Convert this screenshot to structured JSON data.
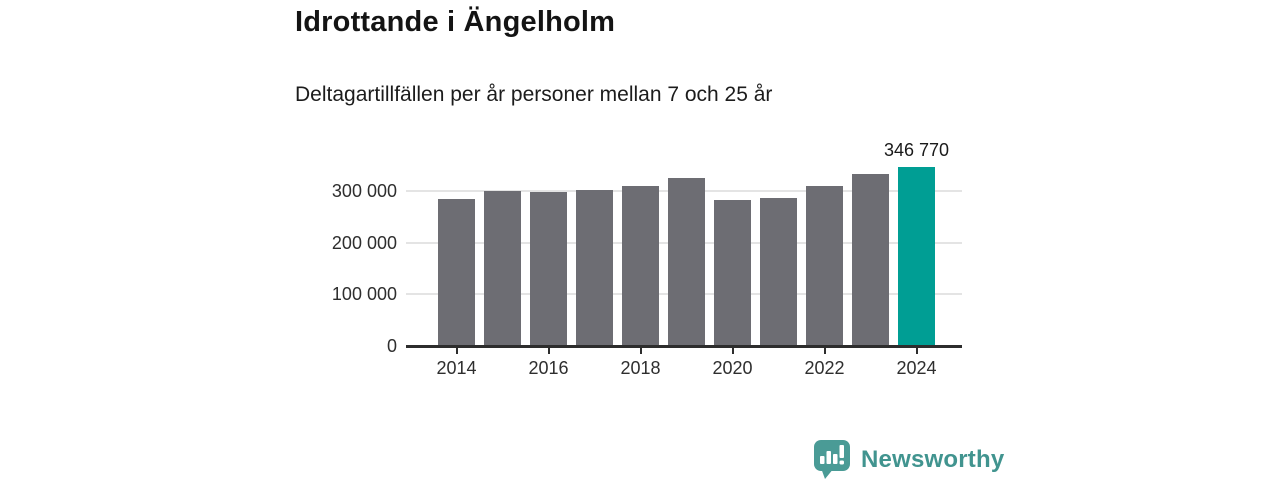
{
  "chart_data": {
    "type": "bar",
    "title": "Idrottande i Ängelholm",
    "subtitle": "Deltagartillfällen per år personer mellan 7 och 25 år",
    "categories": [
      "2014",
      "2015",
      "2016",
      "2017",
      "2018",
      "2019",
      "2020",
      "2021",
      "2022",
      "2023",
      "2024"
    ],
    "values": [
      284000,
      299000,
      297000,
      302000,
      309000,
      325000,
      282000,
      286000,
      309000,
      332000,
      346770
    ],
    "highlight_index": 10,
    "highlight_value_label": "346 770",
    "bar_color": "#6d6d73",
    "highlight_color": "#009e94",
    "x_tick_indices": [
      0,
      2,
      4,
      6,
      8,
      10
    ],
    "x_tick_labels": [
      "2014",
      "2016",
      "2018",
      "2020",
      "2022",
      "2024"
    ],
    "y_ticks": [
      {
        "value": 0,
        "label": "0"
      },
      {
        "value": 100000,
        "label": "100 000"
      },
      {
        "value": 200000,
        "label": "200 000"
      },
      {
        "value": 300000,
        "label": "300 000"
      }
    ],
    "ylim": [
      0,
      360000
    ],
    "grid": "horizontal",
    "legend": "none"
  },
  "branding": {
    "logo_text": "Newsworthy",
    "logo_color": "#4a9b96"
  }
}
